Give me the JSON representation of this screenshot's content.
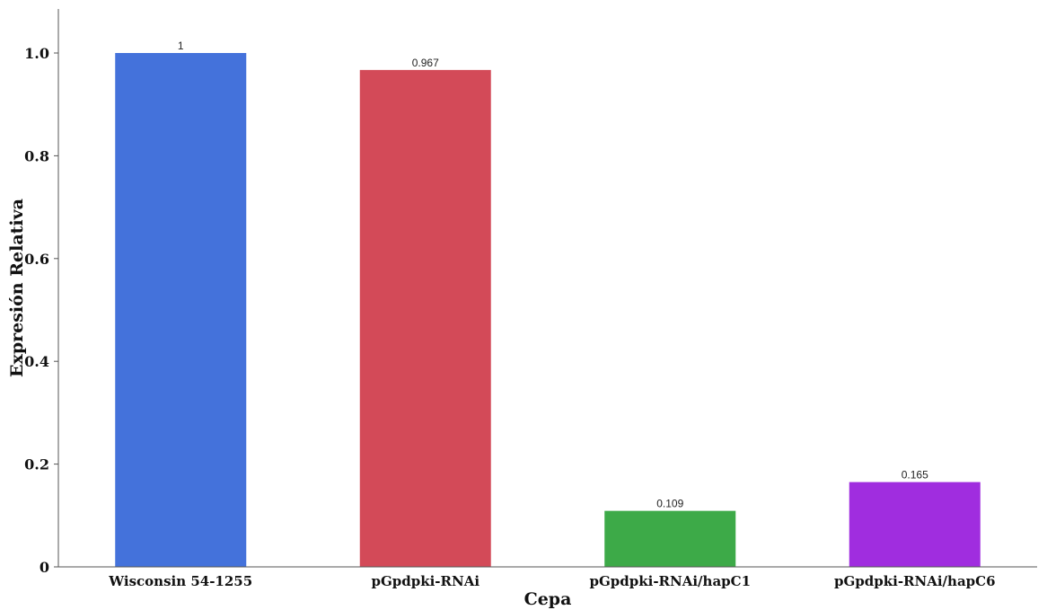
{
  "chart_data": {
    "type": "bar",
    "title": "",
    "xlabel": "Cepa",
    "ylabel": "Expresión Relativa",
    "categories": [
      "Wisconsin 54-1255",
      "pGpdpki-RNAi",
      "pGpdpki-RNAi/hapC1",
      "pGpdpki-RNAi/hapC6"
    ],
    "values": [
      1,
      0.967,
      0.109,
      0.165
    ],
    "data_labels": [
      "1",
      "0.967",
      "0.109",
      "0.165"
    ],
    "colors": [
      "#4472DB",
      "#D34A58",
      "#3DAA48",
      "#A02DDF"
    ],
    "ylim": [
      0,
      1.05
    ],
    "yticks": [
      0,
      0.2,
      0.4,
      0.6,
      0.8,
      1.0
    ],
    "ytick_labels": [
      "0",
      "0.2",
      "0.4",
      "0.6",
      "0.8",
      "1.0"
    ],
    "grid": false,
    "legend": "none"
  }
}
